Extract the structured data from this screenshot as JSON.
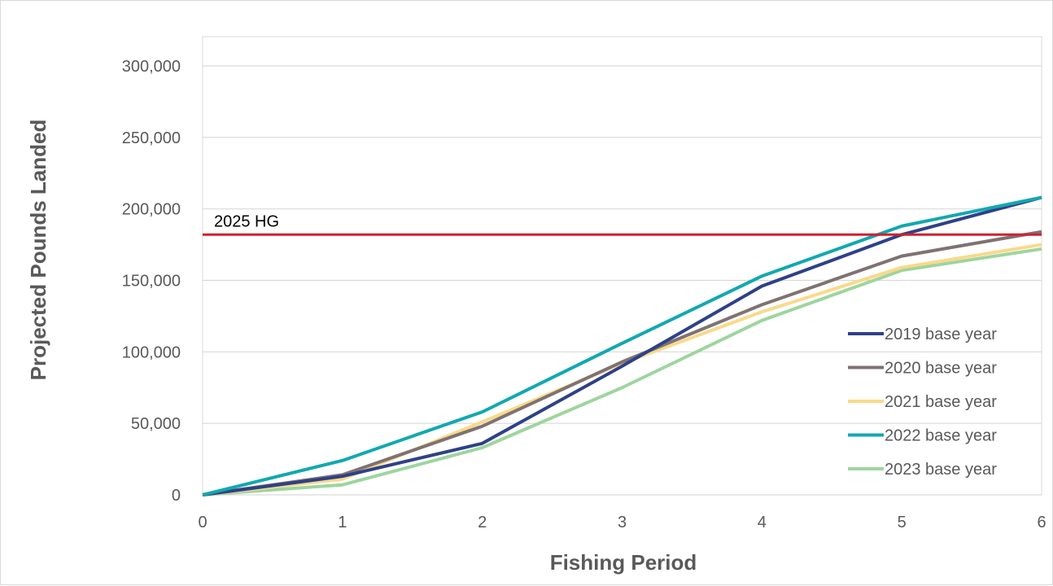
{
  "chart_data": {
    "type": "line",
    "title": "",
    "xlabel": "Fishing Period",
    "ylabel": "Projected Pounds Landed",
    "x": [
      0,
      1,
      2,
      3,
      4,
      5,
      6
    ],
    "xlim": [
      0,
      6
    ],
    "ylim": [
      0,
      300000
    ],
    "x_ticks": [
      "0",
      "1",
      "2",
      "3",
      "4",
      "5",
      "6"
    ],
    "y_ticks": [
      "0",
      "50,000",
      "100,000",
      "150,000",
      "200,000",
      "250,000",
      "300,000"
    ],
    "grid": "horizontal",
    "legend_position": "bottom-right",
    "series": [
      {
        "name": "2019 base year",
        "color": "#2E4187",
        "values": [
          0,
          13000,
          36000,
          90000,
          146000,
          182000,
          208000
        ]
      },
      {
        "name": "2020 base year",
        "color": "#7F7272",
        "values": [
          0,
          14000,
          48000,
          93000,
          133000,
          167000,
          184000
        ]
      },
      {
        "name": "2021 base year",
        "color": "#F9D98B",
        "values": [
          0,
          11000,
          51000,
          92000,
          128000,
          159000,
          175000
        ]
      },
      {
        "name": "2022 base year",
        "color": "#12A8B0",
        "values": [
          0,
          24000,
          58000,
          106000,
          153000,
          188000,
          208000
        ]
      },
      {
        "name": "2023 base year",
        "color": "#9ED59E",
        "values": [
          0,
          7000,
          33000,
          75000,
          122000,
          157000,
          172000
        ]
      }
    ],
    "reference_line": {
      "label": "2025 HG",
      "value": 182000,
      "color": "#D0212F"
    }
  }
}
